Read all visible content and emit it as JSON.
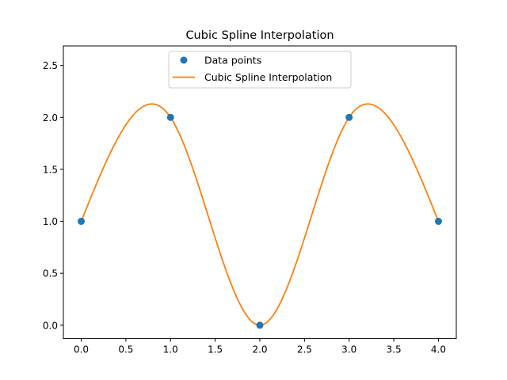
{
  "chart_data": {
    "type": "line",
    "title": "Cubic Spline Interpolation",
    "xlabel": "",
    "ylabel": "",
    "xlim": [
      -0.2,
      4.2
    ],
    "ylim": [
      -0.128,
      2.688
    ],
    "xticks": [
      0.0,
      0.5,
      1.0,
      1.5,
      2.0,
      2.5,
      3.0,
      3.5,
      4.0
    ],
    "xtick_labels": [
      "0.0",
      "0.5",
      "1.0",
      "1.5",
      "2.0",
      "2.5",
      "3.0",
      "3.5",
      "4.0"
    ],
    "yticks": [
      0.0,
      0.5,
      1.0,
      1.5,
      2.0,
      2.5
    ],
    "ytick_labels": [
      "0.0",
      "0.5",
      "1.0",
      "1.5",
      "2.0",
      "2.5"
    ],
    "grid": false,
    "legend_position": "top-center",
    "series": [
      {
        "name": "Data points",
        "kind": "scatter",
        "color": "#1f77b4",
        "x": [
          0,
          1,
          2,
          3,
          4
        ],
        "y": [
          1,
          2,
          0,
          2,
          1
        ]
      },
      {
        "name": "Cubic Spline Interpolation",
        "kind": "line",
        "color": "#ff7f0e",
        "method": "natural cubic spline through data points",
        "x": [
          0,
          1,
          2,
          3,
          4
        ],
        "y": [
          1,
          2,
          0,
          2,
          1
        ]
      }
    ]
  }
}
